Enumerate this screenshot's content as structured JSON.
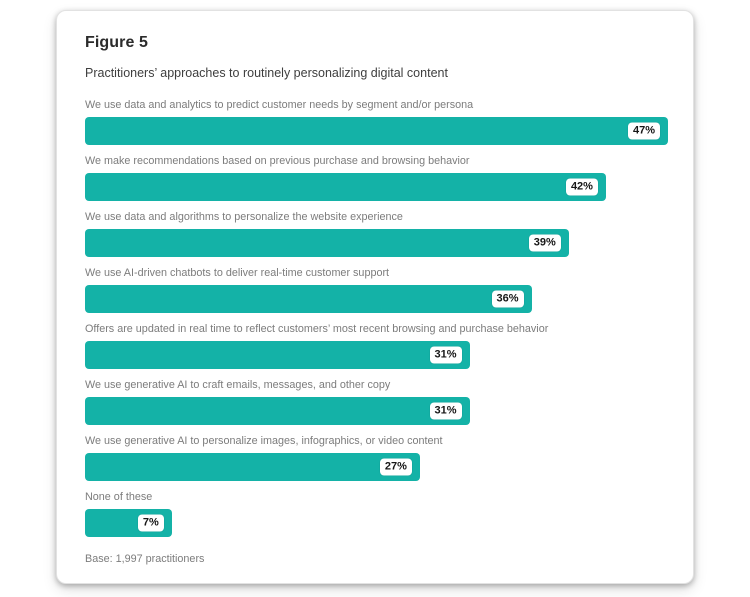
{
  "figure": {
    "title": "Figure 5",
    "subtitle": "Practitioners’ approaches to routinely personalizing digital content",
    "base_note": "Base: 1,997 practitioners"
  },
  "chart_data": {
    "type": "bar",
    "orientation": "horizontal",
    "title": "Practitioners’ approaches to routinely personalizing digital content",
    "categories": [
      "We use data and analytics to predict customer needs by segment and/or persona",
      "We make recommendations based on previous purchase and browsing behavior",
      "We use data and algorithms to personalize the website experience",
      "We use AI-driven chatbots to deliver real-time customer support",
      "Offers are updated in real time to reflect customers’ most recent browsing and purchase behavior",
      "We use generative AI to craft emails, messages, and other copy",
      "We use generative AI to personalize images, infographics, or video content",
      "None of these"
    ],
    "values": [
      47,
      42,
      39,
      36,
      31,
      31,
      27,
      7
    ],
    "value_suffix": "%",
    "xlim": [
      0,
      47
    ],
    "grid": false,
    "legend": false,
    "value_label_position": "inside-end-white-pill",
    "bar_color": "#14b2a7",
    "annotations": [
      "Base: 1,997 practitioners"
    ]
  }
}
